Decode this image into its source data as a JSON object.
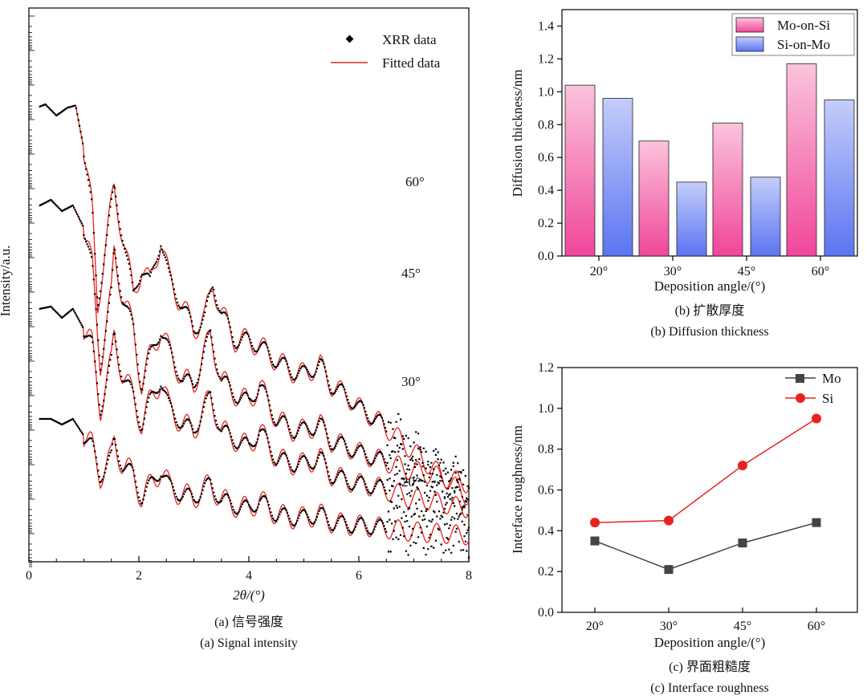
{
  "chart_data": [
    {
      "id": "a",
      "type": "line",
      "caption_zh": "(a) 信号强度",
      "caption_en": "(a) Signal intensity",
      "xlabel": "2θ/(°)",
      "ylabel": "Intensity/a.u.",
      "xlim": [
        0,
        8
      ],
      "xticks": [
        0,
        2,
        4,
        6,
        8
      ],
      "legend": {
        "position": "top-right",
        "entries": [
          "XRR data",
          "Fitted data"
        ]
      },
      "colors": {
        "data": "#000000",
        "fit": "#e8231f"
      },
      "curves": [
        {
          "label": "60°",
          "offset": 3,
          "points": [
            [
              0.2,
              3.98
            ],
            [
              0.3,
              4.0
            ],
            [
              0.5,
              3.9
            ],
            [
              0.7,
              3.97
            ],
            [
              0.85,
              3.99
            ],
            [
              1.0,
              3.6
            ],
            [
              1.15,
              3.05
            ],
            [
              1.25,
              2.2
            ],
            [
              1.35,
              2.6
            ],
            [
              1.55,
              3.25
            ],
            [
              1.7,
              2.85
            ],
            [
              1.9,
              2.3
            ],
            [
              2.05,
              2.55
            ],
            [
              2.2,
              2.4
            ],
            [
              2.4,
              2.8
            ],
            [
              2.55,
              2.45
            ],
            [
              2.8,
              2.2
            ],
            [
              3.0,
              2.0
            ],
            [
              3.2,
              2.1
            ],
            [
              3.35,
              2.4
            ],
            [
              3.5,
              2.15
            ],
            [
              3.75,
              1.9
            ],
            [
              4.0,
              1.9
            ],
            [
              4.2,
              1.85
            ],
            [
              4.5,
              1.72
            ],
            [
              4.8,
              1.62
            ],
            [
              5.0,
              1.6
            ],
            [
              5.3,
              1.68
            ],
            [
              5.5,
              1.5
            ],
            [
              5.8,
              1.4
            ],
            [
              6.0,
              1.3
            ],
            [
              6.3,
              1.2
            ],
            [
              6.6,
              1.08
            ],
            [
              6.9,
              0.95
            ],
            [
              7.2,
              0.82
            ],
            [
              7.5,
              0.7
            ],
            [
              7.8,
              0.58
            ],
            [
              8.0,
              0.5
            ]
          ]
        },
        {
          "label": "45°",
          "offset": 2,
          "points": [
            [
              0.2,
              3.1
            ],
            [
              0.4,
              3.15
            ],
            [
              0.6,
              3.05
            ],
            [
              0.8,
              3.1
            ],
            [
              1.0,
              2.9
            ],
            [
              1.15,
              2.55
            ],
            [
              1.3,
              1.7
            ],
            [
              1.5,
              2.3
            ],
            [
              1.55,
              2.7
            ],
            [
              1.7,
              2.3
            ],
            [
              1.9,
              2.0
            ],
            [
              2.05,
              1.5
            ],
            [
              2.2,
              1.75
            ],
            [
              2.4,
              2.0
            ],
            [
              2.55,
              1.8
            ],
            [
              2.8,
              1.55
            ],
            [
              3.0,
              1.5
            ],
            [
              3.3,
              1.95
            ],
            [
              3.5,
              1.55
            ],
            [
              3.8,
              1.4
            ],
            [
              4.0,
              1.35
            ],
            [
              4.2,
              1.5
            ],
            [
              4.5,
              1.2
            ],
            [
              4.8,
              1.1
            ],
            [
              5.0,
              1.1
            ],
            [
              5.3,
              1.15
            ],
            [
              5.5,
              1.0
            ],
            [
              5.8,
              0.95
            ],
            [
              6.0,
              0.9
            ],
            [
              6.3,
              0.85
            ],
            [
              6.6,
              0.8
            ],
            [
              6.9,
              0.75
            ],
            [
              7.2,
              0.72
            ],
            [
              7.5,
              0.68
            ],
            [
              7.8,
              0.65
            ],
            [
              8.0,
              0.62
            ]
          ]
        },
        {
          "label": "30°",
          "offset": 1,
          "points": [
            [
              0.2,
              2.18
            ],
            [
              0.4,
              2.2
            ],
            [
              0.6,
              2.1
            ],
            [
              0.8,
              2.18
            ],
            [
              1.0,
              2.0
            ],
            [
              1.15,
              1.85
            ],
            [
              1.3,
              1.3
            ],
            [
              1.5,
              1.7
            ],
            [
              1.55,
              1.95
            ],
            [
              1.7,
              1.6
            ],
            [
              1.9,
              1.4
            ],
            [
              2.05,
              1.15
            ],
            [
              2.2,
              1.35
            ],
            [
              2.4,
              1.55
            ],
            [
              2.55,
              1.3
            ],
            [
              2.8,
              1.15
            ],
            [
              3.0,
              1.1
            ],
            [
              3.3,
              1.4
            ],
            [
              3.5,
              1.1
            ],
            [
              3.8,
              1.0
            ],
            [
              4.0,
              0.95
            ],
            [
              4.2,
              1.1
            ],
            [
              4.5,
              0.85
            ],
            [
              4.8,
              0.8
            ],
            [
              5.0,
              0.8
            ],
            [
              5.3,
              0.85
            ],
            [
              5.5,
              0.7
            ],
            [
              5.8,
              0.65
            ],
            [
              6.0,
              0.62
            ],
            [
              6.3,
              0.6
            ],
            [
              6.6,
              0.55
            ],
            [
              6.9,
              0.5
            ],
            [
              7.2,
              0.48
            ],
            [
              7.5,
              0.45
            ],
            [
              7.8,
              0.42
            ],
            [
              8.0,
              0.4
            ]
          ]
        },
        {
          "label": "20°",
          "offset": 0,
          "points": [
            [
              0.2,
              1.2
            ],
            [
              0.4,
              1.2
            ],
            [
              0.6,
              1.15
            ],
            [
              0.8,
              1.2
            ],
            [
              1.0,
              1.05
            ],
            [
              1.15,
              0.95
            ],
            [
              1.3,
              0.7
            ],
            [
              1.5,
              0.85
            ],
            [
              1.55,
              1.0
            ],
            [
              1.7,
              0.8
            ],
            [
              1.9,
              0.7
            ],
            [
              2.05,
              0.5
            ],
            [
              2.2,
              0.6
            ],
            [
              2.4,
              0.75
            ],
            [
              2.55,
              0.6
            ],
            [
              2.8,
              0.52
            ],
            [
              3.0,
              0.5
            ],
            [
              3.3,
              0.62
            ],
            [
              3.5,
              0.48
            ],
            [
              3.8,
              0.42
            ],
            [
              4.0,
              0.4
            ],
            [
              4.2,
              0.48
            ],
            [
              4.5,
              0.35
            ],
            [
              4.8,
              0.32
            ],
            [
              5.0,
              0.32
            ],
            [
              5.3,
              0.35
            ],
            [
              5.5,
              0.28
            ],
            [
              5.8,
              0.26
            ],
            [
              6.0,
              0.25
            ],
            [
              6.3,
              0.24
            ],
            [
              6.6,
              0.22
            ],
            [
              6.9,
              0.2
            ],
            [
              7.2,
              0.19
            ],
            [
              7.5,
              0.18
            ],
            [
              7.8,
              0.17
            ],
            [
              8.0,
              0.16
            ]
          ]
        }
      ]
    },
    {
      "id": "b",
      "type": "bar",
      "caption_zh": "(b) 扩散厚度",
      "caption_en": "(b) Diffusion thickness",
      "xlabel": "Deposition angle/(°)",
      "ylabel": "Diffusion thickness/nm",
      "ylim": [
        0,
        1.5
      ],
      "yticks": [
        0.0,
        0.2,
        0.4,
        0.6,
        0.8,
        1.0,
        1.2,
        1.4
      ],
      "categories": [
        "20°",
        "30°",
        "45°",
        "60°"
      ],
      "legend": "top-right",
      "series": [
        {
          "name": "Mo-on-Si",
          "color_top": "#fbc4dc",
          "color_bottom": "#f0469a",
          "values": [
            1.04,
            0.7,
            0.81,
            1.17
          ]
        },
        {
          "name": "Si-on-Mo",
          "color_top": "#c4cdfa",
          "color_bottom": "#5b74f2",
          "values": [
            0.96,
            0.45,
            0.48,
            0.95
          ]
        }
      ]
    },
    {
      "id": "c",
      "type": "line",
      "caption_zh": "(c) 界面粗糙度",
      "caption_en": "(c) Interface roughness",
      "xlabel": "Deposition angle/(°)",
      "ylabel": "Interface roughness/nm",
      "ylim": [
        0,
        1.2
      ],
      "yticks": [
        0.0,
        0.2,
        0.4,
        0.6,
        0.8,
        1.0,
        1.2
      ],
      "categories": [
        "20°",
        "30°",
        "45°",
        "60°"
      ],
      "legend": "top-right",
      "series": [
        {
          "name": "Mo",
          "color": "#444444",
          "marker": "square",
          "values": [
            0.35,
            0.21,
            0.34,
            0.44
          ]
        },
        {
          "name": "Si",
          "color": "#e8231f",
          "marker": "circle",
          "values": [
            0.44,
            0.45,
            0.72,
            0.95
          ]
        }
      ]
    }
  ]
}
